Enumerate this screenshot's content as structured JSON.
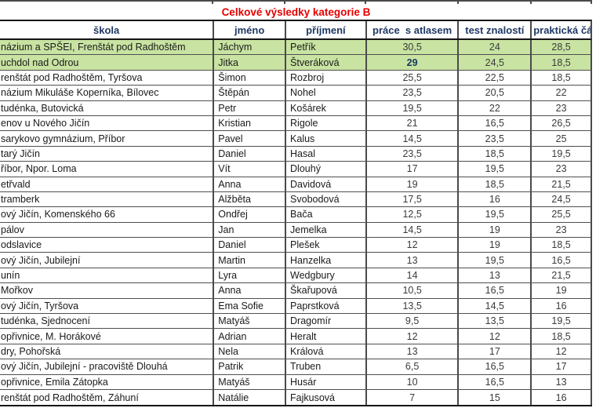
{
  "title": "Celkové výsledky kategorie B",
  "columns": {
    "school": "škola",
    "first": "jméno",
    "last": "příjmení",
    "atlas": "práce  s atlasem",
    "test": "test znalostí",
    "practical": "praktická čá"
  },
  "colors": {
    "title_text": "#e60000",
    "header_text": "#1f3864",
    "highlight_row": "#c8e3a2",
    "grid": "#4a4a4a",
    "number_text": "#3a3a3a",
    "emphasis_text": "#17375e"
  },
  "rows": [
    {
      "school": "názium a SPŠEI, Frenštát pod Radhoštěm",
      "first": "Jáchym",
      "last": "Petřík",
      "atlas": "30,5",
      "test": "24",
      "practical": "28,5",
      "highlight": true
    },
    {
      "school": "uchdol nad Odrou",
      "first": "Jitka",
      "last": "Štveráková",
      "atlas": "29",
      "test": "24,5",
      "practical": "18,5",
      "highlight": true,
      "emph": "atlas"
    },
    {
      "school": "renštát pod Radhoštěm, Tyršova",
      "first": "Šimon",
      "last": "Rozbroj",
      "atlas": "25,5",
      "test": "22,5",
      "practical": "18,5"
    },
    {
      "school": "názium Mikuláše Koperníka, Bílovec",
      "first": "Štěpán",
      "last": "Nohel",
      "atlas": "23,5",
      "test": "20,5",
      "practical": "22"
    },
    {
      "school": "tudénka, Butovická",
      "first": "Petr",
      "last": "Košárek",
      "atlas": "19,5",
      "test": "22",
      "practical": "23"
    },
    {
      "school": "enov u Nového Jičín",
      "first": "Kristian",
      "last": "Rigole",
      "atlas": "21",
      "test": "16,5",
      "practical": "26,5"
    },
    {
      "school": "sarykovo gymnázium, Příbor",
      "first": "Pavel",
      "last": "Kalus",
      "atlas": "14,5",
      "test": "23,5",
      "practical": "25"
    },
    {
      "school": "tarý Jičín",
      "first": "Daniel",
      "last": "Hasal",
      "atlas": "23,5",
      "test": "18,5",
      "practical": "19,5"
    },
    {
      "school": "říbor, Npor. Loma",
      "first": "Vít",
      "last": "Dlouhý",
      "atlas": "17",
      "test": "19,5",
      "practical": "23"
    },
    {
      "school": "etřvald",
      "first": "Anna",
      "last": "Davidová",
      "atlas": "19",
      "test": "18,5",
      "practical": "21,5"
    },
    {
      "school": "tramberk",
      "first": "Alžběta",
      "last": "Svobodová",
      "atlas": "17,5",
      "test": "16",
      "practical": "24,5"
    },
    {
      "school": "ový Jičín, Komenského 66",
      "first": "Ondřej",
      "last": "Bača",
      "atlas": "12,5",
      "test": "19,5",
      "practical": "25,5"
    },
    {
      "school": "pálov",
      "first": "Jan",
      "last": "Jemelka",
      "atlas": "14,5",
      "test": "19",
      "practical": "23"
    },
    {
      "school": "odslavice",
      "first": "Daniel",
      "last": "Plešek",
      "atlas": "12",
      "test": "19",
      "practical": "18,5"
    },
    {
      "school": "ový Jičín, Jubilejní",
      "first": "Martin",
      "last": "Hanzelka",
      "atlas": "13",
      "test": "19,5",
      "practical": "16,5"
    },
    {
      "school": "unín",
      "first": "Lyra",
      "last": "Wedgbury",
      "atlas": "14",
      "test": "13",
      "practical": "21,5"
    },
    {
      "school": "Mořkov",
      "first": "Anna",
      "last": "Škařupová",
      "atlas": "10,5",
      "test": "16,5",
      "practical": "19"
    },
    {
      "school": "ový Jičín, Tyršova",
      "first": "Ema Sofie",
      "last": "Paprstková",
      "atlas": "13,5",
      "test": "14,5",
      "practical": "16"
    },
    {
      "school": "tudénka, Sjednocení",
      "first": "Matyáš",
      "last": "Dragomír",
      "atlas": "9,5",
      "test": "13,5",
      "practical": "19,5"
    },
    {
      "school": "opřivnice, M. Horákové",
      "first": "Adrian",
      "last": "Heralt",
      "atlas": "12",
      "test": "12",
      "practical": "18,5"
    },
    {
      "school": "dry, Pohořská",
      "first": "Nela",
      "last": "Králová",
      "atlas": "13",
      "test": "17",
      "practical": "12"
    },
    {
      "school": "ový Jičín, Jubilejní - pracoviště Dlouhá",
      "first": "Patrik",
      "last": "Truben",
      "atlas": "6,5",
      "test": "16,5",
      "practical": "17"
    },
    {
      "school": "opřivnice, Emila Zátopka",
      "first": "Matyáš",
      "last": "Husár",
      "atlas": "10",
      "test": "16,5",
      "practical": "13"
    },
    {
      "school": "renštát pod Radhoštěm, Záhuní",
      "first": "Natálie",
      "last": "Fajkusová",
      "atlas": "7",
      "test": "15",
      "practical": "16"
    }
  ]
}
